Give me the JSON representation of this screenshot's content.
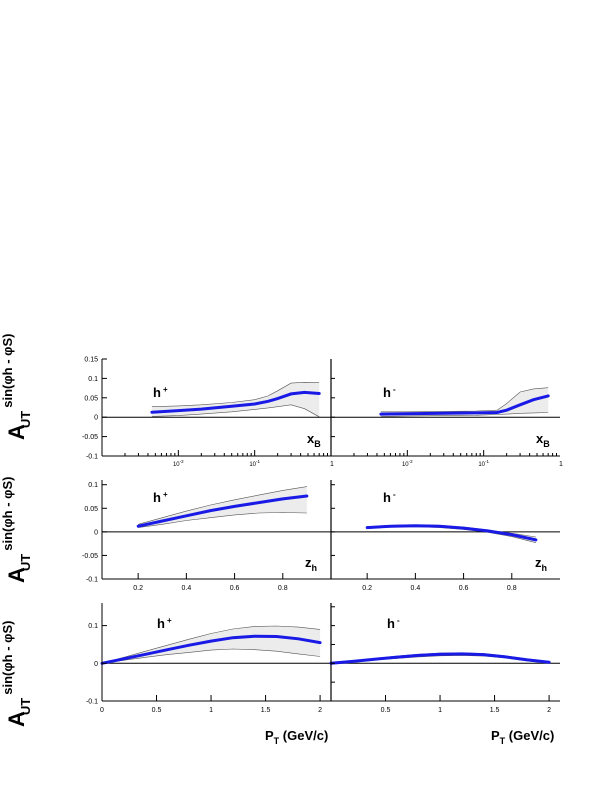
{
  "figure": {
    "ylabel_main": "A",
    "ylabel_sub": "UT",
    "ylabel_sup": "sin(φh - φS)"
  },
  "colors": {
    "curve": "#1a1ae6",
    "band_fill": "#ececec",
    "band_edge": "#555555",
    "axis": "#000000"
  },
  "chart_data": [
    {
      "id": "xB-hplus",
      "type": "area",
      "series_label": "h",
      "charge": "+",
      "xlabel": "x",
      "xlabel_sub": "B",
      "xscale": "log",
      "xlim": [
        0.001,
        1
      ],
      "ylim": [
        -0.1,
        0.15
      ],
      "yticks": [
        "0.15",
        "0.1",
        "0.05",
        "0",
        "-0.05",
        "-0.1"
      ],
      "xticks_log": [
        {
          "v": 0.01,
          "b": "10",
          "e": "-2"
        },
        {
          "v": 0.1,
          "b": "10",
          "e": "-1"
        }
      ],
      "xtick_end": "1",
      "x": [
        0.0045,
        0.01,
        0.02,
        0.05,
        0.1,
        0.15,
        0.2,
        0.3,
        0.45,
        0.7
      ],
      "central": [
        0.013,
        0.017,
        0.021,
        0.028,
        0.034,
        0.041,
        0.048,
        0.06,
        0.064,
        0.061
      ],
      "upper": [
        0.027,
        0.029,
        0.032,
        0.038,
        0.045,
        0.055,
        0.068,
        0.088,
        0.09,
        0.089
      ],
      "lower": [
        0.002,
        0.004,
        0.008,
        0.014,
        0.02,
        0.024,
        0.027,
        0.032,
        0.022,
        0.001
      ]
    },
    {
      "id": "xB-hminus",
      "type": "area",
      "series_label": "h",
      "charge": "-",
      "xlabel": "x",
      "xlabel_sub": "B",
      "xscale": "log",
      "xlim": [
        0.001,
        1
      ],
      "ylim": [
        -0.1,
        0.15
      ],
      "yticks": [],
      "xticks_log": [
        {
          "v": 0.01,
          "b": "10",
          "e": "-2"
        },
        {
          "v": 0.1,
          "b": "10",
          "e": "-1"
        }
      ],
      "xtick_end": "1",
      "x": [
        0.0045,
        0.01,
        0.03,
        0.08,
        0.15,
        0.2,
        0.3,
        0.45,
        0.7
      ],
      "central": [
        0.008,
        0.009,
        0.01,
        0.011,
        0.012,
        0.018,
        0.032,
        0.045,
        0.055
      ],
      "upper": [
        0.014,
        0.014,
        0.015,
        0.016,
        0.018,
        0.035,
        0.065,
        0.073,
        0.076
      ],
      "lower": [
        0.002,
        0.003,
        0.004,
        0.005,
        0.007,
        0.008,
        0.01,
        0.011,
        0.012
      ]
    },
    {
      "id": "zh-hplus",
      "type": "area",
      "series_label": "h",
      "charge": "+",
      "xlabel": "z",
      "xlabel_sub": "h",
      "xscale": "linear",
      "xlim": [
        0.05,
        1.0
      ],
      "ylim": [
        -0.1,
        0.11
      ],
      "yticks": [
        "0.1",
        "0.05",
        "0",
        "-0.05",
        "-0.1"
      ],
      "xticks": [
        "0.2",
        "0.4",
        "0.6",
        "0.8"
      ],
      "xtick_vals": [
        0.2,
        0.4,
        0.6,
        0.8
      ],
      "x": [
        0.2,
        0.3,
        0.4,
        0.5,
        0.6,
        0.7,
        0.8,
        0.9
      ],
      "central": [
        0.012,
        0.023,
        0.034,
        0.045,
        0.054,
        0.062,
        0.07,
        0.076
      ],
      "upper": [
        0.016,
        0.03,
        0.044,
        0.057,
        0.068,
        0.078,
        0.088,
        0.096
      ],
      "lower": [
        0.009,
        0.016,
        0.024,
        0.03,
        0.036,
        0.04,
        0.041,
        0.04
      ]
    },
    {
      "id": "zh-hminus",
      "type": "area",
      "series_label": "h",
      "charge": "-",
      "xlabel": "z",
      "xlabel_sub": "h",
      "xscale": "linear",
      "xlim": [
        0.05,
        1.0
      ],
      "ylim": [
        -0.1,
        0.11
      ],
      "yticks": [],
      "xticks": [
        "0.2",
        "0.4",
        "0.6",
        "0.8"
      ],
      "xtick_vals": [
        0.2,
        0.4,
        0.6,
        0.8
      ],
      "x": [
        0.2,
        0.3,
        0.4,
        0.5,
        0.6,
        0.7,
        0.8,
        0.9
      ],
      "central": [
        0.009,
        0.012,
        0.013,
        0.012,
        0.008,
        0.002,
        -0.006,
        -0.017
      ],
      "upper": [
        0.011,
        0.014,
        0.015,
        0.014,
        0.01,
        0.004,
        -0.003,
        -0.011
      ],
      "lower": [
        0.007,
        0.01,
        0.011,
        0.009,
        0.005,
        -0.001,
        -0.01,
        -0.023
      ]
    },
    {
      "id": "pt-hplus",
      "type": "area",
      "series_label": "h",
      "charge": "+",
      "xlabel": "P",
      "xlabel_sub": "T",
      "xlabel_rest": " (GeV/c)",
      "xscale": "linear",
      "xlim": [
        0,
        2.1
      ],
      "ylim": [
        -0.1,
        0.16
      ],
      "yticks": [
        "0.1",
        "0",
        "-0.1"
      ],
      "ytick_vals": [
        0.1,
        0,
        -0.1
      ],
      "xticks": [
        "0",
        "0.5",
        "1",
        "1.5",
        "2"
      ],
      "xtick_vals": [
        0,
        0.5,
        1,
        1.5,
        2
      ],
      "x": [
        0.0,
        0.2,
        0.4,
        0.6,
        0.8,
        1.0,
        1.2,
        1.4,
        1.6,
        1.8,
        2.0
      ],
      "central": [
        0.0,
        0.012,
        0.024,
        0.036,
        0.048,
        0.059,
        0.068,
        0.072,
        0.071,
        0.065,
        0.055
      ],
      "upper": [
        0.0,
        0.016,
        0.032,
        0.048,
        0.064,
        0.079,
        0.091,
        0.098,
        0.099,
        0.096,
        0.09
      ],
      "lower": [
        0.0,
        0.008,
        0.016,
        0.023,
        0.029,
        0.035,
        0.038,
        0.036,
        0.032,
        0.025,
        0.018
      ]
    },
    {
      "id": "pt-hminus",
      "type": "area",
      "series_label": "h",
      "charge": "-",
      "xlabel": "P",
      "xlabel_sub": "T",
      "xlabel_rest": " (GeV/c)",
      "xscale": "linear",
      "xlim": [
        0,
        2.1
      ],
      "ylim": [
        -0.1,
        0.16
      ],
      "yticks": [],
      "xticks": [
        "0.5",
        "1",
        "1.5",
        "2"
      ],
      "xtick_vals": [
        0.5,
        1,
        1.5,
        2
      ],
      "x": [
        0.0,
        0.2,
        0.4,
        0.6,
        0.8,
        1.0,
        1.2,
        1.4,
        1.6,
        1.8,
        2.0
      ],
      "central": [
        0.0,
        0.005,
        0.011,
        0.016,
        0.021,
        0.024,
        0.025,
        0.023,
        0.017,
        0.009,
        0.003
      ],
      "upper": [
        0.0,
        0.006,
        0.013,
        0.019,
        0.024,
        0.027,
        0.028,
        0.026,
        0.02,
        0.012,
        0.005
      ],
      "lower": [
        0.0,
        0.004,
        0.009,
        0.013,
        0.017,
        0.02,
        0.021,
        0.019,
        0.014,
        0.006,
        0.001
      ]
    }
  ]
}
